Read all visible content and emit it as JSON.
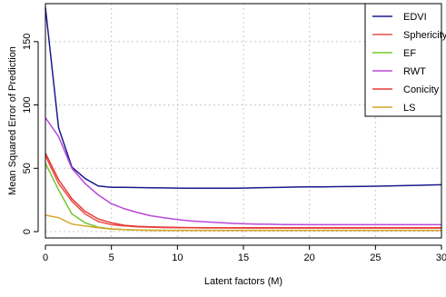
{
  "chart_data": {
    "type": "line",
    "title": "",
    "xlabel": "Latent factors (M)",
    "ylabel": "Mean Squared Error of Prediction",
    "xlim": [
      0,
      30
    ],
    "ylim": [
      -5,
      180
    ],
    "xticks": [
      0,
      5,
      10,
      15,
      20,
      25,
      30
    ],
    "yticks": [
      0,
      50,
      100,
      150
    ],
    "grid": true,
    "legend_position": "top-right",
    "x": [
      0,
      1,
      2,
      3,
      4,
      5,
      6,
      7,
      8,
      9,
      10,
      11,
      12,
      13,
      14,
      15,
      16,
      17,
      18,
      19,
      20,
      21,
      22,
      23,
      24,
      25,
      26,
      27,
      28,
      29,
      30
    ],
    "series": [
      {
        "name": "EDVI",
        "color": "#1a1a8c",
        "values": [
          177,
          82,
          51,
          42,
          36,
          35,
          35,
          34.8,
          34.6,
          34.5,
          34.4,
          34.3,
          34.2,
          34.2,
          34.3,
          34.4,
          34.6,
          34.8,
          35.0,
          35.2,
          35.3,
          35.4,
          35.5,
          35.6,
          35.7,
          35.9,
          36.1,
          36.3,
          36.5,
          36.8,
          37.0
        ]
      },
      {
        "name": "Sphericity",
        "color": "#e8504f",
        "values": [
          60,
          38,
          24,
          14,
          8,
          5.5,
          4.5,
          3.8,
          3.5,
          3.2,
          3.0,
          3.0,
          2.9,
          2.9,
          2.9,
          2.8,
          2.8,
          2.8,
          2.8,
          2.8,
          2.8,
          2.8,
          2.8,
          2.8,
          2.8,
          2.8,
          2.8,
          2.8,
          2.8,
          2.8,
          2.8
        ]
      },
      {
        "name": "EF",
        "color": "#74c82c",
        "values": [
          54,
          33,
          14,
          7,
          3.5,
          2.2,
          1.6,
          1.3,
          1.1,
          1.0,
          1.0,
          1.0,
          1.0,
          1.0,
          1.0,
          1.0,
          1.0,
          1.0,
          1.0,
          1.0,
          1.0,
          1.0,
          1.0,
          1.0,
          1.0,
          1.0,
          1.0,
          1.0,
          1.0,
          1.0,
          1.0
        ]
      },
      {
        "name": "RWT",
        "color": "#b94ad6",
        "values": [
          90,
          75,
          50,
          38,
          29,
          22,
          18,
          15,
          12.5,
          11,
          9.5,
          8.5,
          7.8,
          7.2,
          6.6,
          6.2,
          6.0,
          5.8,
          5.6,
          5.6,
          5.5,
          5.5,
          5.5,
          5.5,
          5.5,
          5.5,
          5.5,
          5.5,
          5.5,
          5.5,
          5.5
        ]
      },
      {
        "name": "Conicity",
        "color": "#e83a36",
        "values": [
          62,
          41,
          26,
          16,
          10,
          7,
          5,
          4.2,
          3.8,
          3.5,
          3.3,
          3.2,
          3.1,
          3.0,
          3.0,
          3.0,
          3.0,
          3.0,
          3.0,
          3.0,
          3.0,
          3.0,
          3.0,
          3.0,
          3.0,
          3.0,
          3.0,
          3.0,
          3.0,
          3.0,
          3.0
        ]
      },
      {
        "name": "LS",
        "color": "#d4a62a",
        "values": [
          13,
          11,
          6,
          4.5,
          3,
          2,
          1.5,
          1.2,
          1.0,
          0.9,
          0.9,
          0.9,
          0.9,
          0.9,
          0.9,
          0.9,
          0.9,
          0.9,
          0.9,
          0.9,
          0.9,
          0.9,
          0.9,
          0.9,
          0.9,
          0.9,
          0.9,
          0.9,
          0.9,
          0.9,
          0.9
        ]
      }
    ]
  }
}
